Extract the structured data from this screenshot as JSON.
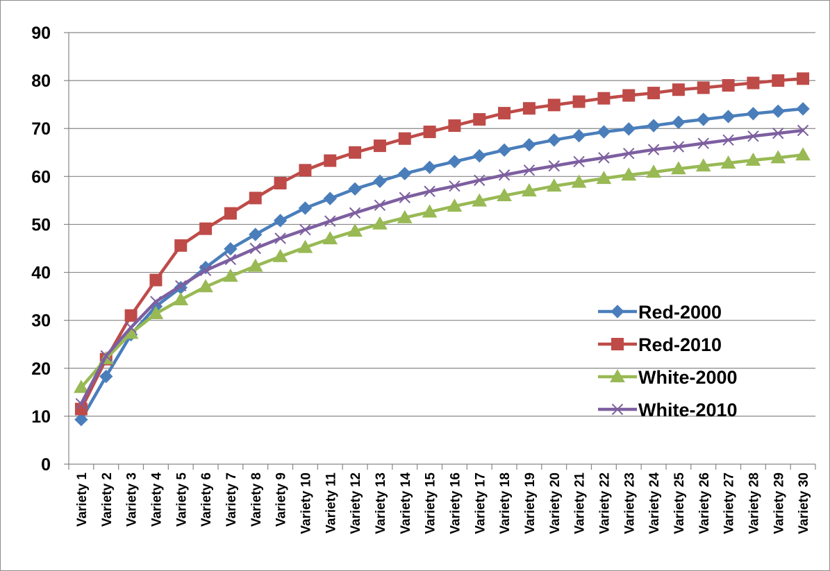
{
  "chart_data": {
    "type": "line",
    "title": "",
    "xlabel": "",
    "ylabel": "",
    "ylim": [
      0,
      90
    ],
    "yticks": [
      "0",
      "10",
      "20",
      "30",
      "40",
      "50",
      "60",
      "70",
      "80",
      "90"
    ],
    "grid": "horizontal",
    "legend_position": "right",
    "categories": [
      "Variety 1",
      "Variety 2",
      "Variety 3",
      "Variety 4",
      "Variety 5",
      "Variety 6",
      "Variety 7",
      "Variety 8",
      "Variety 9",
      "Variety 10",
      "Variety 11",
      "Variety 12",
      "Variety 13",
      "Variety 14",
      "Variety 15",
      "Variety 16",
      "Variety 17",
      "Variety 18",
      "Variety 19",
      "Variety 20",
      "Variety 21",
      "Variety 22",
      "Variety 23",
      "Variety 24",
      "Variety 25",
      "Variety 26",
      "Variety 27",
      "Variety 28",
      "Variety 29",
      "Variety 30"
    ],
    "series": [
      {
        "name": "Red-2000",
        "color": "#4a7ebb",
        "marker": "diamond",
        "values": [
          9.3,
          18.3,
          27.0,
          32.9,
          36.8,
          41.0,
          44.9,
          47.9,
          50.8,
          53.4,
          55.4,
          57.4,
          59.0,
          60.6,
          61.9,
          63.1,
          64.3,
          65.5,
          66.6,
          67.6,
          68.5,
          69.3,
          69.9,
          70.6,
          71.3,
          71.9,
          72.5,
          73.1,
          73.6,
          74.1
        ]
      },
      {
        "name": "Red-2010",
        "color": "#be4b48",
        "marker": "square",
        "values": [
          11.5,
          21.9,
          31.0,
          38.4,
          45.6,
          49.1,
          52.3,
          55.5,
          58.6,
          61.3,
          63.3,
          65.0,
          66.4,
          67.9,
          69.3,
          70.6,
          71.9,
          73.2,
          74.2,
          74.9,
          75.6,
          76.3,
          76.9,
          77.4,
          78.1,
          78.5,
          79.0,
          79.5,
          80.0,
          80.4
        ]
      },
      {
        "name": "White-2000",
        "color": "#98b954",
        "marker": "triangle",
        "values": [
          16.0,
          22.0,
          27.3,
          31.4,
          34.3,
          37.0,
          39.2,
          41.3,
          43.3,
          45.2,
          47.0,
          48.6,
          50.1,
          51.4,
          52.6,
          53.8,
          54.9,
          56.0,
          57.0,
          58.0,
          58.8,
          59.6,
          60.3,
          60.9,
          61.6,
          62.2,
          62.8,
          63.4,
          63.9,
          64.5
        ]
      },
      {
        "name": "White-2010",
        "color": "#7d5fa0",
        "marker": "x",
        "values": [
          12.6,
          22.6,
          28.5,
          33.9,
          37.2,
          40.4,
          42.7,
          45.0,
          47.1,
          48.9,
          50.7,
          52.4,
          54.0,
          55.6,
          56.9,
          58.0,
          59.2,
          60.3,
          61.3,
          62.2,
          63.1,
          63.9,
          64.8,
          65.6,
          66.2,
          66.9,
          67.6,
          68.4,
          69.0,
          69.6
        ]
      }
    ]
  }
}
